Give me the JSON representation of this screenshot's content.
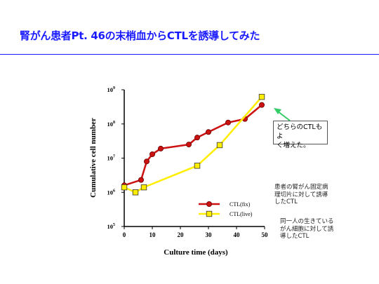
{
  "slide": {
    "title": "腎がん患者Pt. 46の末梢血からCTLを誘導してみた"
  },
  "callout": {
    "text": "どちらのCTLもよ\nく増えた。"
  },
  "notes": {
    "fix": "患者の腎がん固定病\n理切片に対して誘導\nしたCTL",
    "live": "同一人の生きている\nがん細胞に対して誘\n導したCTL"
  },
  "chart_data": {
    "type": "line",
    "xlabel": "Culture time (days)",
    "ylabel": "Cumulative cell number",
    "xlim": [
      0,
      50
    ],
    "ylim": [
      100000,
      1000000000
    ],
    "yscale": "log",
    "xticks": [
      0,
      10,
      20,
      30,
      40,
      50
    ],
    "yticks": [
      {
        "value": 100000,
        "label": "10^5"
      },
      {
        "value": 1000000,
        "label": "10^6"
      },
      {
        "value": 10000000,
        "label": "10^7"
      },
      {
        "value": 100000000,
        "label": "10^8"
      },
      {
        "value": 1000000000,
        "label": "10^9"
      }
    ],
    "grid": false,
    "legend_position": "bottom-right",
    "series": [
      {
        "name": "CTL(fix)",
        "color": "#cc1111",
        "marker": "circle",
        "x": [
          0,
          6,
          8,
          10,
          13,
          23,
          26,
          30,
          37,
          43,
          49
        ],
        "y": [
          1600000,
          2300000,
          8000000,
          13000000,
          19000000,
          25000000,
          40000000,
          58000000,
          110000000,
          140000000,
          360000000
        ]
      },
      {
        "name": "CTL(live)",
        "color": "#ffee00",
        "marker": "square",
        "x": [
          0,
          4,
          7,
          26,
          34,
          49
        ],
        "y": [
          1400000,
          1000000,
          1400000,
          6000000,
          24000000,
          620000000
        ]
      }
    ]
  }
}
